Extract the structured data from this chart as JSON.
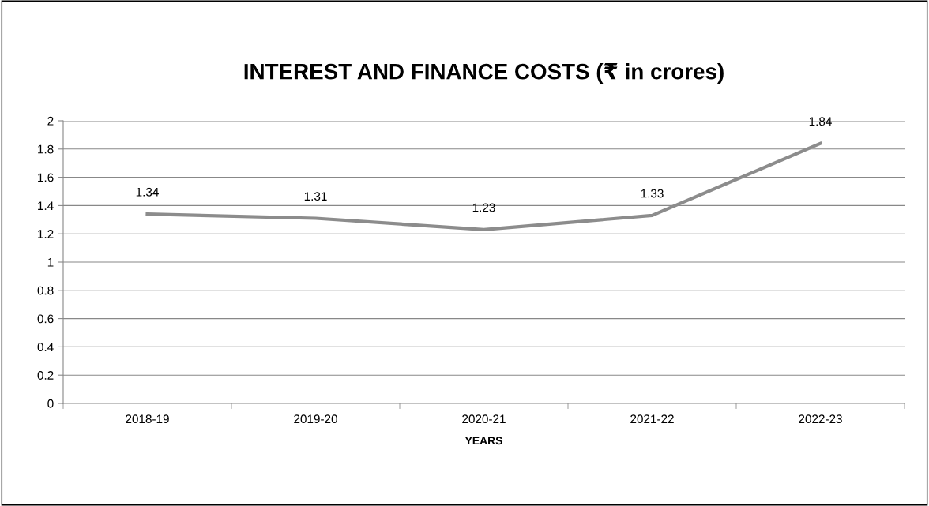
{
  "chart_data": {
    "type": "line",
    "title": "INTEREST AND FINANCE COSTS (₹ in crores)",
    "xlabel": "YEARS",
    "categories": [
      "2018-19",
      "2019-20",
      "2020-21",
      "2021-22",
      "2022-23"
    ],
    "series": [
      {
        "color": "#8c8c8c",
        "values": [
          1.34,
          1.31,
          1.23,
          1.33,
          1.84
        ]
      }
    ],
    "ylim": [
      0,
      2
    ],
    "yticks": [
      0,
      0.2,
      0.4,
      0.6,
      0.8,
      1,
      1.2,
      1.4,
      1.6,
      1.8,
      2
    ],
    "grid": "y",
    "data_labels": true,
    "marker": "none",
    "line_style": "solid"
  }
}
